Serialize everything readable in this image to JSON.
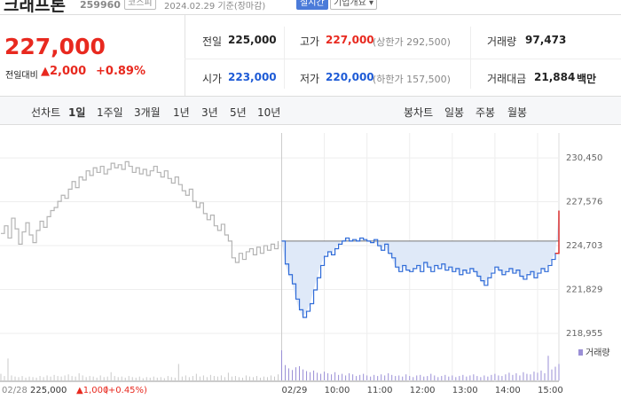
{
  "header": {
    "name": "크래프톤",
    "code": "259960",
    "market": "코스피",
    "date": "2024.02.29 기준(장마감)",
    "realtime": "실시간",
    "company_info": "기업개요"
  },
  "quote": {
    "price": "227,000",
    "change_label": "전일대비",
    "change": "▲2,000",
    "change_pct": "+0.89%"
  },
  "stats": [
    {
      "label": "전일",
      "value": "225,000"
    },
    {
      "label": "고가",
      "value": "227,000",
      "note": "(상한가 292,500)"
    },
    {
      "label": "거래량",
      "value": "97,473"
    },
    {
      "label": "시가",
      "value": "223,000"
    },
    {
      "label": "저가",
      "value": "220,000",
      "note": "(하한가 157,500)"
    },
    {
      "label": "거래대금",
      "value": "21,884",
      "unit": "백만"
    }
  ],
  "tabs": {
    "line_label": "선차트",
    "line_periods": [
      "1일",
      "1주일",
      "3개월",
      "1년",
      "3년",
      "5년",
      "10년"
    ],
    "candle_label": "봉차트",
    "candle_periods": [
      "일봉",
      "주봉",
      "월봉"
    ]
  },
  "chart_data": {
    "type": "line",
    "ylim": [
      218430,
      231500
    ],
    "yticks": [
      {
        "value": 218955,
        "label": "218,955"
      },
      {
        "value": 221829,
        "label": "221,829"
      },
      {
        "value": 224703,
        "label": "224,703"
      },
      {
        "value": 227576,
        "label": "227,576"
      },
      {
        "value": 230450,
        "label": "230,450"
      }
    ],
    "xlim": [
      0,
      157
    ],
    "xticks": [
      {
        "value": 79,
        "label": "02/29"
      },
      {
        "value": 91,
        "label": "10:00"
      },
      {
        "value": 103,
        "label": "11:00"
      },
      {
        "value": 115,
        "label": "12:00"
      },
      {
        "value": 127,
        "label": "13:00"
      },
      {
        "value": 139,
        "label": "14:00"
      },
      {
        "value": 151,
        "label": "15:00"
      }
    ],
    "grid": true,
    "baseline": 225000,
    "fill_color": "#dfe9f8",
    "last_color": "#e8291f",
    "series": [
      {
        "color": "#b4b4b4",
        "x": [
          0,
          1,
          2,
          3,
          4,
          5,
          6,
          7,
          8,
          9,
          10,
          11,
          12,
          13,
          14,
          15,
          16,
          17,
          18,
          19,
          20,
          21,
          22,
          23,
          24,
          25,
          26,
          27,
          28,
          29,
          30,
          31,
          32,
          33,
          34,
          35,
          36,
          37,
          38,
          39,
          40,
          41,
          42,
          43,
          44,
          45,
          46,
          47,
          48,
          49,
          50,
          51,
          52,
          53,
          54,
          55,
          56,
          57,
          58,
          59,
          60,
          61,
          62,
          63,
          64,
          65,
          66,
          67,
          68,
          69,
          70,
          71,
          72,
          73,
          74,
          75,
          76,
          77,
          78
        ],
        "values": [
          225500,
          226000,
          225200,
          226500,
          225800,
          224800,
          225600,
          226200,
          225400,
          224900,
          225700,
          226300,
          225900,
          226600,
          227000,
          227200,
          227600,
          228000,
          227800,
          228400,
          228900,
          228500,
          229200,
          229000,
          229600,
          229300,
          229800,
          229500,
          229900,
          229400,
          229700,
          230100,
          229800,
          230000,
          229700,
          230200,
          229900,
          229500,
          229800,
          229400,
          229700,
          229300,
          229600,
          229900,
          229500,
          229200,
          229600,
          229100,
          228800,
          229200,
          228700,
          228300,
          228000,
          228400,
          227600,
          227200,
          227500,
          226800,
          226400,
          226700,
          226000,
          225700,
          226100,
          225400,
          225000,
          223900,
          223600,
          224200,
          223800,
          224300,
          224500,
          224100,
          224600,
          224200,
          224700,
          224400,
          224800,
          224500,
          225000
        ]
      },
      {
        "color": "#2f6bd8",
        "fill": true,
        "x": [
          79,
          80,
          81,
          82,
          83,
          84,
          85,
          86,
          87,
          88,
          89,
          90,
          91,
          92,
          93,
          94,
          95,
          96,
          97,
          98,
          99,
          100,
          101,
          102,
          103,
          104,
          105,
          106,
          107,
          108,
          109,
          110,
          111,
          112,
          113,
          114,
          115,
          116,
          117,
          118,
          119,
          120,
          121,
          122,
          123,
          124,
          125,
          126,
          127,
          128,
          129,
          130,
          131,
          132,
          133,
          134,
          135,
          136,
          137,
          138,
          139,
          140,
          141,
          142,
          143,
          144,
          145,
          146,
          147,
          148,
          149,
          150,
          151,
          152,
          153,
          154,
          155,
          156,
          157
        ],
        "values": [
          225000,
          223500,
          222800,
          222200,
          221200,
          220500,
          220000,
          220400,
          220900,
          221800,
          222600,
          223400,
          224000,
          224300,
          224100,
          224500,
          224800,
          225000,
          225200,
          225000,
          225100,
          225000,
          225200,
          225100,
          225000,
          224900,
          225100,
          224700,
          224400,
          224800,
          224200,
          223900,
          223300,
          223000,
          223400,
          223100,
          223000,
          223200,
          223400,
          223000,
          223600,
          223300,
          223000,
          223400,
          223200,
          223500,
          223100,
          223300,
          223000,
          223200,
          222800,
          223100,
          222900,
          223200,
          223000,
          222700,
          222400,
          222100,
          222600,
          222900,
          223300,
          223100,
          222800,
          223000,
          223200,
          222900,
          223100,
          222700,
          222500,
          222800,
          223000,
          222600,
          222900,
          223200,
          223000,
          223400,
          223800,
          224200,
          227000
        ]
      }
    ],
    "volume_ylim": [
      0,
      6000
    ],
    "volume": [
      {
        "color": "#c9c9c9",
        "values": [
          1200,
          800,
          4000,
          900,
          700,
          600,
          800,
          500,
          700,
          600,
          500,
          800,
          600,
          900,
          700,
          1000,
          800,
          700,
          900,
          1100,
          800,
          700,
          1300,
          900,
          600,
          800,
          700,
          500,
          900,
          600,
          700,
          1500,
          800,
          600,
          700,
          500,
          800,
          600,
          500,
          700,
          400,
          600,
          500,
          700,
          500,
          600,
          400,
          800,
          600,
          500,
          3000,
          700,
          900,
          600,
          800,
          1200,
          700,
          900,
          600,
          1000,
          800,
          700,
          900,
          600,
          1400,
          700,
          800,
          600,
          500,
          900,
          700,
          600,
          800,
          500,
          700,
          600,
          900,
          700,
          1100
        ]
      },
      {
        "name": "거래량",
        "color": "#9a8fd6",
        "values": [
          5500,
          2800,
          2200,
          1900,
          2400,
          2600,
          2000,
          1700,
          1500,
          1800,
          1400,
          1200,
          1600,
          1300,
          1100,
          1500,
          1000,
          1200,
          900,
          1300,
          1100,
          800,
          1000,
          1200,
          900,
          700,
          1000,
          800,
          1100,
          900,
          1300,
          1000,
          800,
          900,
          700,
          1100,
          800,
          600,
          900,
          1000,
          700,
          800,
          1200,
          900,
          600,
          800,
          1000,
          700,
          900,
          600,
          800,
          1000,
          700,
          900,
          1100,
          800,
          600,
          900,
          700,
          1000,
          1200,
          900,
          800,
          1100,
          1400,
          1000,
          1300,
          900,
          1500,
          1200,
          1100,
          1600,
          1400,
          1800,
          1300,
          4500,
          2000,
          2500,
          3000
        ]
      }
    ],
    "prev_summary": {
      "date": "02/28",
      "close": "225,000",
      "change": "▲1,000",
      "pct": "(+0.45%)"
    }
  }
}
